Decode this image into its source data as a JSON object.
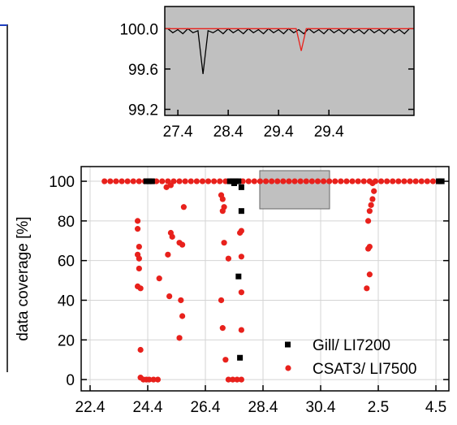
{
  "chart_data": [
    {
      "type": "scatter",
      "y_label": "data coverage [%]",
      "xlim": [
        -0.31,
        12.45
      ],
      "ylim": [
        -5.7,
        107.4
      ],
      "xticks": [
        {
          "value": 0,
          "label": "22.4"
        },
        {
          "value": 2,
          "label": "24.4"
        },
        {
          "value": 4,
          "label": "26.4"
        },
        {
          "value": 6,
          "label": "28.4"
        },
        {
          "value": 8,
          "label": "30.4"
        },
        {
          "value": 10,
          "label": "2.5"
        },
        {
          "value": 12,
          "label": "4.5"
        }
      ],
      "yticks": [
        0,
        20,
        40,
        60,
        80,
        100
      ],
      "grid": true,
      "legend": "lower right",
      "series": [
        {
          "name": "Gill/ LI7200",
          "color": "#000000",
          "marker": "square",
          "x": [
            1.95,
            2.05,
            2.15,
            4.85,
            4.95,
            5.05,
            5.15,
            5.0,
            5.25,
            5.25,
            5.15,
            5.2,
            12.1,
            12.2
          ],
          "values": [
            100,
            100,
            100,
            100,
            100,
            100,
            100,
            99,
            97,
            85,
            52,
            11,
            100,
            100
          ]
        },
        {
          "name": "CSAT3/ LI7500",
          "color": "#e8211c",
          "marker": "circle",
          "x": [
            0.5,
            0.7,
            0.9,
            1.1,
            1.3,
            1.5,
            1.7,
            1.9,
            2.1,
            2.3,
            2.5,
            2.7,
            2.9,
            3.1,
            3.3,
            3.5,
            3.7,
            3.9,
            4.1,
            4.3,
            4.5,
            4.7,
            4.9,
            5.1,
            5.3,
            5.5,
            5.7,
            5.9,
            6.1,
            6.3,
            6.5,
            6.7,
            6.9,
            7.1,
            7.3,
            7.5,
            7.7,
            7.9,
            8.1,
            8.3,
            8.5,
            8.7,
            8.9,
            9.1,
            9.3,
            9.5,
            9.7,
            9.9,
            10.1,
            10.3,
            10.5,
            10.7,
            10.9,
            11.1,
            11.3,
            11.5,
            11.7,
            11.9,
            12.1,
            1.65,
            1.65,
            1.7,
            1.65,
            1.7,
            1.7,
            1.65,
            1.75,
            1.75,
            1.75,
            1.85,
            1.95,
            2.05,
            2.2,
            2.35,
            2.4,
            2.65,
            2.8,
            2.8,
            2.85,
            2.7,
            2.75,
            3.25,
            3.1,
            3.2,
            3.15,
            3.2,
            3.1,
            4.55,
            4.6,
            4.65,
            4.6,
            4.65,
            4.55,
            4.6,
            4.7,
            4.8,
            4.8,
            4.95,
            5.1,
            5.25,
            5.2,
            5.25,
            5.25,
            5.25,
            5.25,
            9.8,
            9.85,
            9.8,
            9.75,
            9.7,
            9.65,
            9.7,
            9.65,
            9.7,
            9.6
          ],
          "values": [
            100,
            100,
            100,
            100,
            100,
            100,
            100,
            100,
            100,
            100,
            100,
            100,
            100,
            100,
            100,
            100,
            100,
            100,
            100,
            100,
            100,
            100,
            100,
            100,
            100,
            100,
            100,
            100,
            100,
            100,
            100,
            100,
            100,
            100,
            100,
            100,
            100,
            100,
            100,
            100,
            100,
            100,
            100,
            100,
            100,
            100,
            100,
            100,
            100,
            100,
            100,
            100,
            100,
            100,
            100,
            100,
            100,
            100,
            100,
            80,
            76,
            67,
            63,
            61,
            56,
            47,
            46,
            15,
            1,
            0,
            0,
            0,
            0,
            0,
            51,
            97,
            98,
            74,
            72,
            63,
            42,
            87,
            69,
            68,
            40,
            32,
            21,
            93,
            91,
            87,
            85,
            69,
            40,
            26,
            10,
            61,
            0,
            0,
            0,
            0,
            74,
            75,
            62,
            44,
            25,
            99,
            95,
            91,
            88,
            85,
            80,
            67,
            66,
            53,
            46
          ]
        }
      ]
    },
    {
      "type": "line",
      "xlim": [
        -0.26,
        4.69
      ],
      "ylim": [
        99.14,
        100.22
      ],
      "xticks": [
        {
          "value": 0,
          "label": "27.4"
        },
        {
          "value": 1,
          "label": "28.4"
        },
        {
          "value": 2,
          "label": "29.4"
        },
        {
          "value": 3,
          "label": "29.4"
        }
      ],
      "yticks": [
        99.2,
        99.6,
        {
          "value": 100,
          "label": "100.0"
        }
      ],
      "background": "#c0c0c0",
      "series": [
        {
          "color": "#000000",
          "x": [
            -0.2,
            -0.1,
            0,
            0.1,
            0.2,
            0.3,
            0.4,
            0.5,
            0.6,
            0.7,
            0.8,
            0.9,
            1,
            1.1,
            1.2,
            1.3,
            1.4,
            1.5,
            1.6,
            1.7,
            1.8,
            1.9,
            2,
            2.1,
            2.2,
            2.3,
            2.4,
            2.5,
            2.6,
            2.7,
            2.8,
            2.9,
            3,
            3.1,
            3.2,
            3.3,
            3.4,
            3.5,
            3.6,
            3.7,
            3.8,
            3.9,
            4,
            4.1,
            4.2,
            4.3,
            4.4,
            4.5,
            4.6
          ],
          "values": [
            100,
            99.96,
            99.99,
            99.95,
            100,
            99.96,
            99.98,
            99.55,
            99.98,
            99.96,
            99.99,
            99.95,
            100,
            99.96,
            99.99,
            99.95,
            100,
            99.96,
            99.99,
            99.95,
            100,
            99.96,
            99.99,
            99.95,
            100,
            99.96,
            99.99,
            99.95,
            100,
            99.96,
            99.99,
            99.95,
            100,
            99.96,
            99.99,
            99.95,
            100,
            99.96,
            99.99,
            99.95,
            100,
            99.96,
            99.99,
            99.95,
            100,
            99.96,
            99.99,
            99.95,
            100
          ]
        },
        {
          "color": "#e8211c",
          "x": [
            -0.26,
            2.35,
            2.45,
            2.55,
            4.69
          ],
          "values": [
            100,
            100,
            99.78,
            100,
            100
          ]
        }
      ]
    }
  ]
}
